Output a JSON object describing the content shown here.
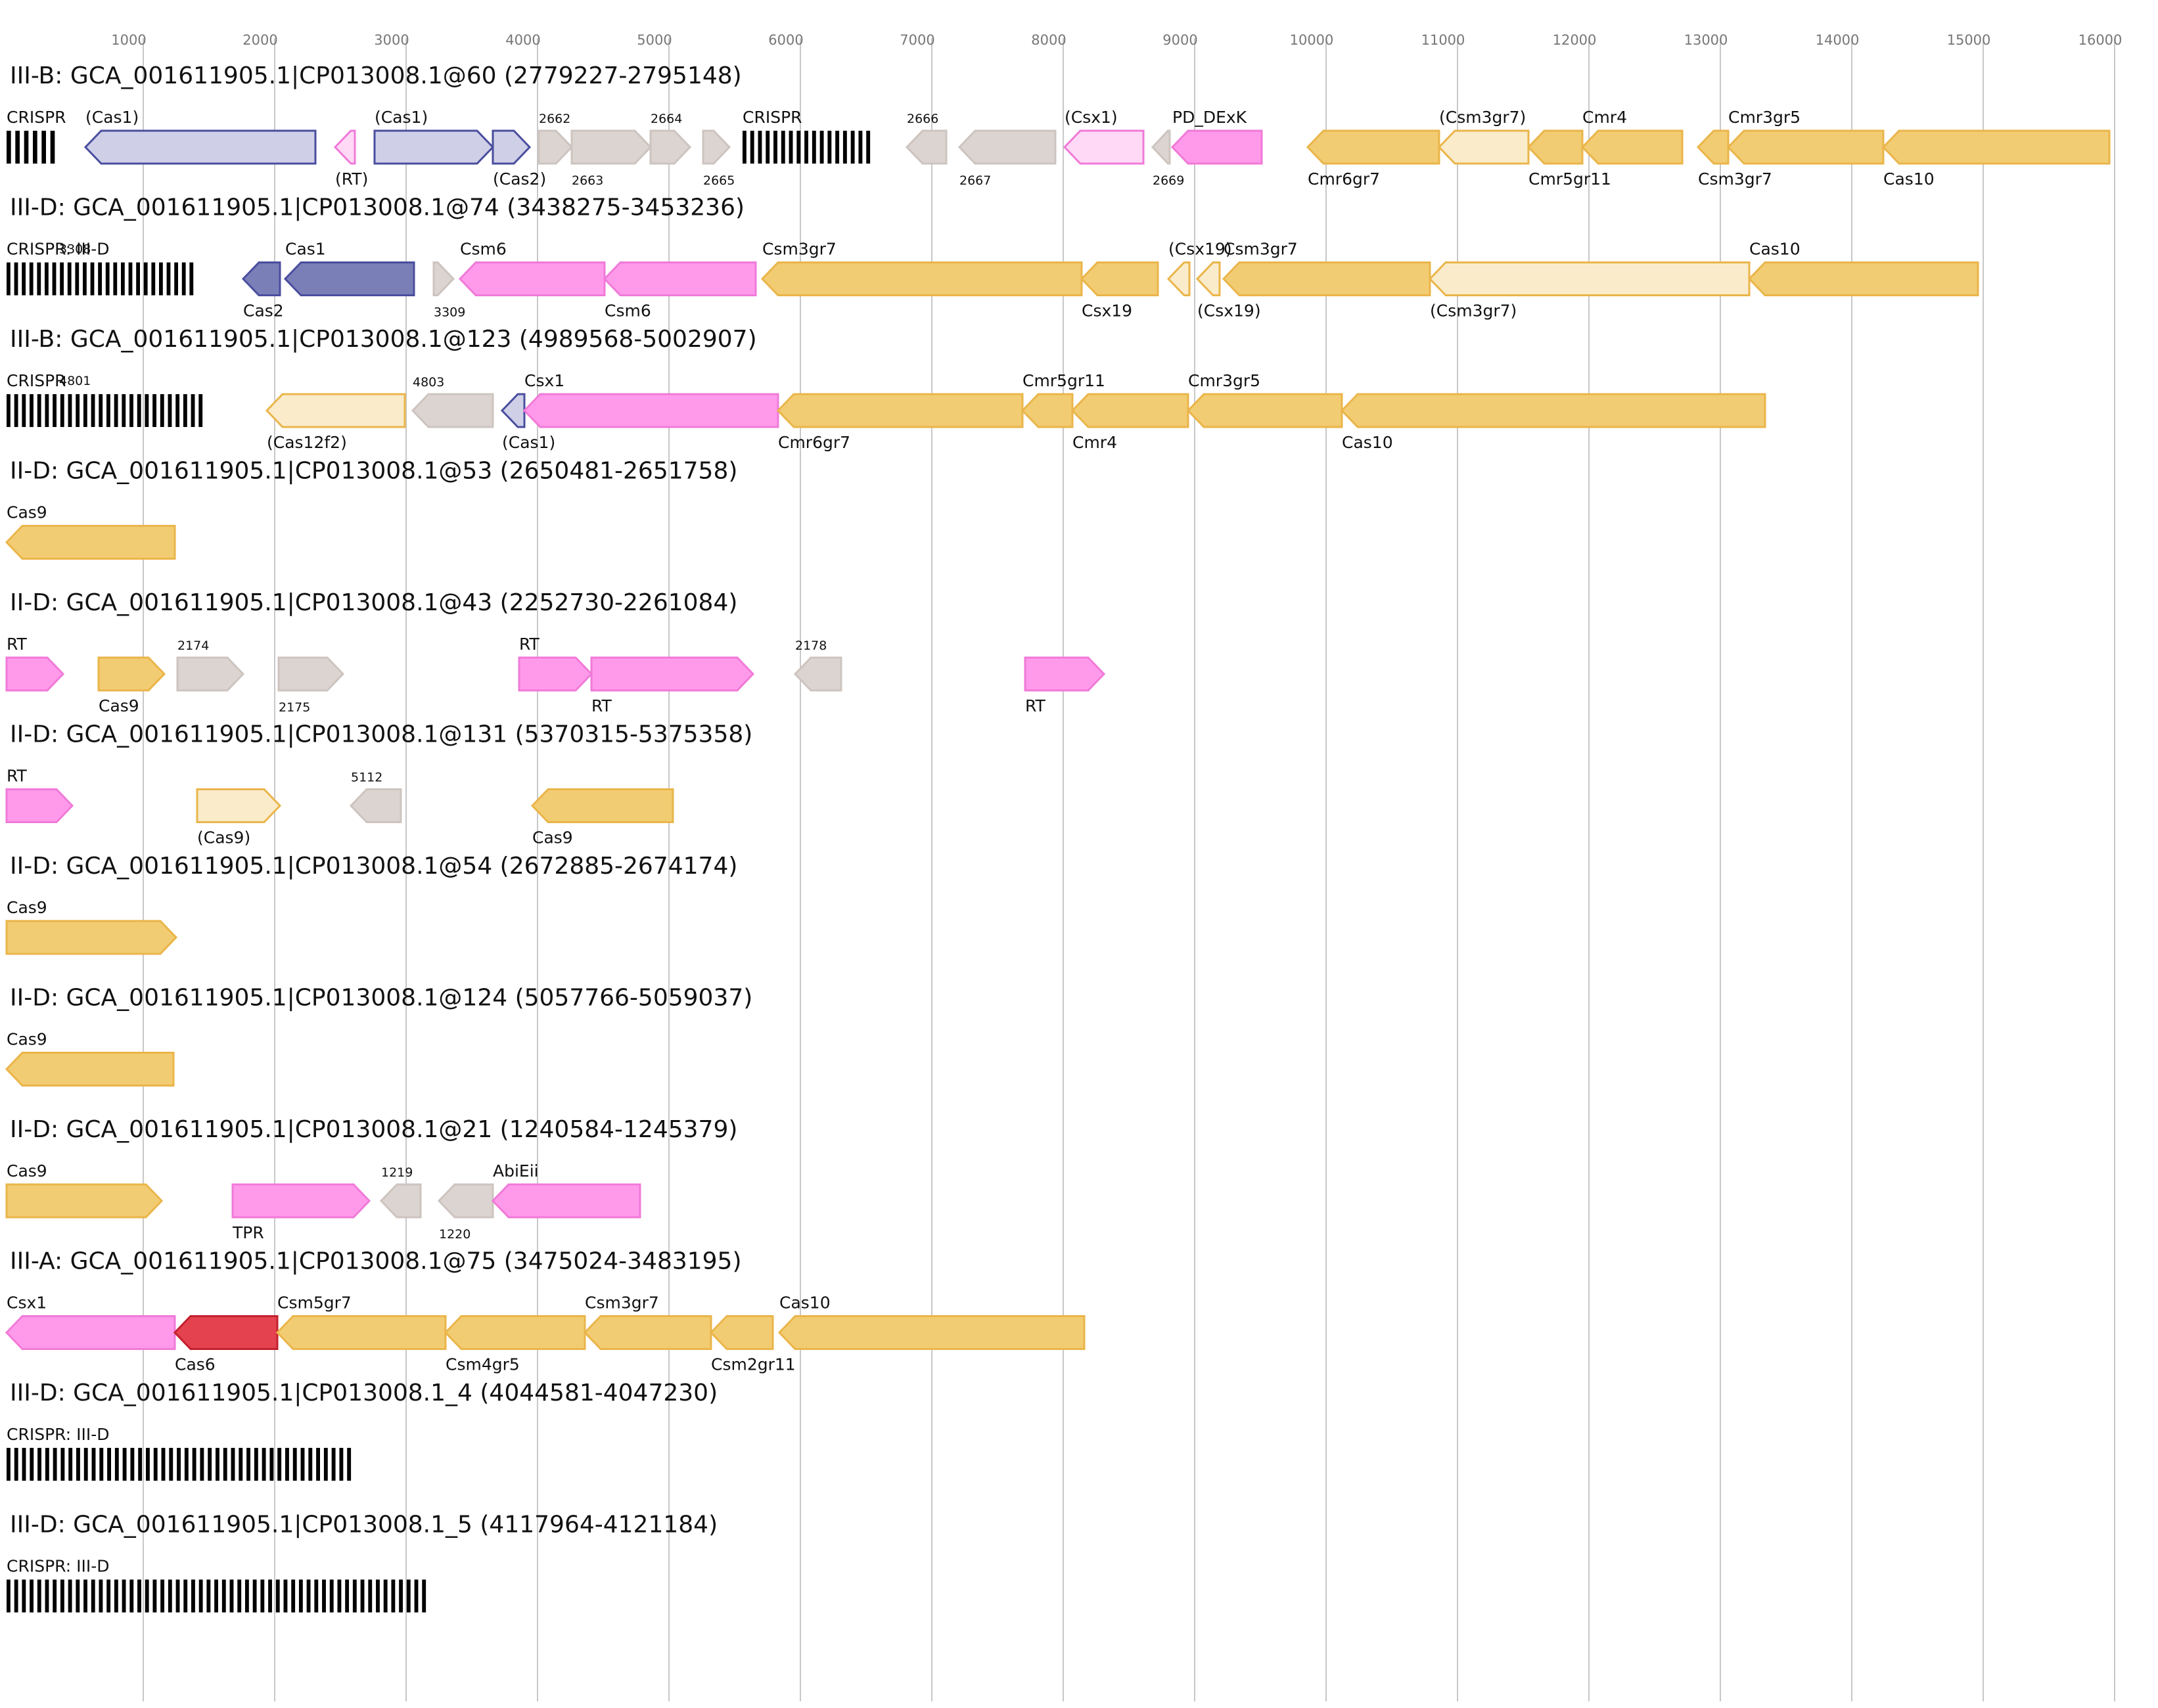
{
  "colors": {
    "grid": "#c8c8c8",
    "blue": {
      "fill": "#7b7fb8",
      "stroke": "#4a4e9e"
    },
    "blue_light": {
      "fill": "#cfd0e8",
      "stroke": "#4a4e9e"
    },
    "pink": {
      "fill": "#ff9aea",
      "stroke": "#f07ad8"
    },
    "pink_light": {
      "fill": "#ffd9f6",
      "stroke": "#f07ad8"
    },
    "gold": {
      "fill": "#f2cc72",
      "stroke": "#eab54a"
    },
    "gold_light": {
      "fill": "#faebcb",
      "stroke": "#eab54a"
    },
    "grey": {
      "fill": "#dcd4d0",
      "stroke": "#cdc4bf"
    },
    "red": {
      "fill": "#e5424f",
      "stroke": "#c3202e"
    },
    "crispr": "#000000"
  },
  "axis": {
    "min": 0,
    "max": 16000,
    "ticks": [
      1000,
      2000,
      3000,
      4000,
      5000,
      6000,
      7000,
      8000,
      9000,
      10000,
      11000,
      12000,
      13000,
      14000,
      15000,
      16000
    ]
  },
  "tracks": [
    {
      "title": "III-B: GCA_001611905.1|CP013008.1@60 (2779227-2795148)",
      "features": [
        {
          "type": "crispr",
          "start": 0,
          "end": 400,
          "label": "CRISPR",
          "bars": 6
        },
        {
          "start": 600,
          "end": 2350,
          "strand": "-",
          "color": "blue_light",
          "label": "(Cas1)",
          "lp": "above"
        },
        {
          "start": 2500,
          "end": 2650,
          "strand": "-",
          "color": "pink_light",
          "label": "(RT)",
          "lp": "below"
        },
        {
          "start": 2800,
          "end": 3700,
          "strand": "+",
          "color": "blue_light",
          "label": "(Cas1)",
          "lp": "above"
        },
        {
          "start": 3700,
          "end": 3980,
          "strand": "+",
          "color": "blue_light",
          "label": "(Cas2)",
          "lp": "below"
        },
        {
          "start": 4050,
          "end": 4300,
          "strand": "+",
          "color": "grey",
          "label": "2662",
          "lp": "above",
          "small": true
        },
        {
          "start": 4300,
          "end": 4900,
          "strand": "+",
          "color": "grey",
          "label": "2663",
          "lp": "below",
          "small": true
        },
        {
          "start": 4900,
          "end": 5200,
          "strand": "+",
          "color": "grey",
          "label": "2664",
          "lp": "above",
          "small": true
        },
        {
          "start": 5300,
          "end": 5500,
          "strand": "+",
          "color": "grey",
          "label": "2665",
          "lp": "below",
          "small": true
        },
        {
          "type": "crispr",
          "start": 5600,
          "end": 6600,
          "label": "CRISPR",
          "bars": 17
        },
        {
          "start": 6850,
          "end": 7150,
          "strand": "-",
          "color": "grey",
          "label": "2666",
          "lp": "above",
          "small": true
        },
        {
          "start": 7250,
          "end": 7980,
          "strand": "-",
          "color": "grey",
          "label": "2667",
          "lp": "below",
          "small": true
        },
        {
          "start": 8050,
          "end": 8650,
          "strand": "-",
          "color": "pink_light",
          "label": "(Csx1)",
          "lp": "above"
        },
        {
          "start": 8720,
          "end": 8850,
          "strand": "-",
          "color": "grey",
          "label": "2669",
          "lp": "below",
          "small": true
        },
        {
          "start": 8870,
          "end": 9550,
          "strand": "-",
          "color": "pink",
          "label": "PD_DExK",
          "lp": "above"
        },
        {
          "start": 9900,
          "end": 10900,
          "strand": "-",
          "color": "gold",
          "label": "Cmr6gr7",
          "lp": "below"
        },
        {
          "start": 10900,
          "end": 11580,
          "strand": "-",
          "color": "gold_light",
          "label": "(Csm3gr7)",
          "lp": "above"
        },
        {
          "start": 11580,
          "end": 11990,
          "strand": "-",
          "color": "gold",
          "label": "Cmr5gr11",
          "lp": "below"
        },
        {
          "start": 11990,
          "end": 12750,
          "strand": "-",
          "color": "gold",
          "label": "Cmr4",
          "lp": "above"
        },
        {
          "start": 12870,
          "end": 13100,
          "strand": "-",
          "color": "gold",
          "label": "Csm3gr7",
          "lp": "below"
        },
        {
          "start": 13100,
          "end": 14280,
          "strand": "-",
          "color": "gold",
          "label": "Cmr3gr5",
          "lp": "above"
        },
        {
          "start": 14280,
          "end": 16000,
          "strand": "-",
          "color": "gold",
          "label": "Cas10",
          "lp": "below"
        }
      ]
    },
    {
      "title": "III-D: GCA_001611905.1|CP013008.1@74 (3438275-3453236)",
      "features": [
        {
          "type": "crispr",
          "start": 0,
          "end": 1450,
          "label": "CRISPR: III-D",
          "bars": 25,
          "num": "3308"
        },
        {
          "start": 1800,
          "end": 2080,
          "strand": "-",
          "color": "blue",
          "label": "Cas2",
          "lp": "below"
        },
        {
          "start": 2120,
          "end": 3100,
          "strand": "-",
          "color": "blue",
          "label": "Cas1",
          "lp": "above"
        },
        {
          "start": 3250,
          "end": 3400,
          "strand": "+",
          "color": "grey",
          "label": "3309",
          "lp": "below",
          "small": true
        },
        {
          "start": 3450,
          "end": 4550,
          "strand": "-",
          "color": "pink",
          "label": "Csm6",
          "lp": "above"
        },
        {
          "start": 4550,
          "end": 5700,
          "strand": "-",
          "color": "pink",
          "label": "Csm6",
          "lp": "below"
        },
        {
          "start": 5750,
          "end": 8180,
          "strand": "-",
          "color": "gold",
          "label": "Csm3gr7",
          "lp": "above"
        },
        {
          "start": 8180,
          "end": 8760,
          "strand": "-",
          "color": "gold",
          "label": "Csx19",
          "lp": "below"
        },
        {
          "start": 8840,
          "end": 9000,
          "strand": "-",
          "color": "gold_light",
          "label": "(Csx19)",
          "lp": "above"
        },
        {
          "start": 9060,
          "end": 9230,
          "strand": "-",
          "color": "gold_light",
          "label": "(Csx19)",
          "lp": "below"
        },
        {
          "start": 9260,
          "end": 10830,
          "strand": "-",
          "color": "gold",
          "label": "Csm3gr7",
          "lp": "above"
        },
        {
          "start": 10830,
          "end": 13260,
          "strand": "-",
          "color": "gold_light",
          "label": "(Csm3gr7)",
          "lp": "below"
        },
        {
          "start": 13260,
          "end": 15000,
          "strand": "-",
          "color": "gold",
          "label": "Cas10",
          "lp": "above"
        }
      ]
    },
    {
      "title": "III-B: GCA_001611905.1|CP013008.1@123 (4989568-5002907)",
      "features": [
        {
          "type": "crispr",
          "start": 0,
          "end": 1520,
          "label": "CRISPR",
          "bars": 26,
          "num": "4801"
        },
        {
          "start": 1980,
          "end": 3030,
          "strand": "-",
          "color": "gold_light",
          "label": "(Cas12f2)",
          "lp": "below"
        },
        {
          "start": 3090,
          "end": 3700,
          "strand": "-",
          "color": "grey",
          "label": "4803",
          "lp": "above",
          "small": true
        },
        {
          "start": 3770,
          "end": 3940,
          "strand": "-",
          "color": "blue_light",
          "label": "(Cas1)",
          "lp": "below"
        },
        {
          "start": 3940,
          "end": 5870,
          "strand": "-",
          "color": "pink",
          "label": "Csx1",
          "lp": "above"
        },
        {
          "start": 5870,
          "end": 7730,
          "strand": "-",
          "color": "gold",
          "label": "Cmr6gr7",
          "lp": "below"
        },
        {
          "start": 7730,
          "end": 8110,
          "strand": "-",
          "color": "gold",
          "label": "Cmr5gr11",
          "lp": "above"
        },
        {
          "start": 8110,
          "end": 8990,
          "strand": "-",
          "color": "gold",
          "label": "Cmr4",
          "lp": "below"
        },
        {
          "start": 8990,
          "end": 10160,
          "strand": "-",
          "color": "gold",
          "label": "Cmr3gr5",
          "lp": "above"
        },
        {
          "start": 10160,
          "end": 13380,
          "strand": "-",
          "color": "gold",
          "label": "Cas10",
          "lp": "below"
        }
      ]
    },
    {
      "title": "II-D: GCA_001611905.1|CP013008.1@53 (2650481-2651758)",
      "features": [
        {
          "start": 0,
          "end": 1280,
          "strand": "-",
          "color": "gold",
          "label": "Cas9",
          "lp": "above"
        }
      ]
    },
    {
      "title": "II-D: GCA_001611905.1|CP013008.1@43 (2252730-2261084)",
      "features": [
        {
          "start": 0,
          "end": 430,
          "strand": "+",
          "color": "pink",
          "label": "RT",
          "lp": "above"
        },
        {
          "start": 700,
          "end": 1200,
          "strand": "+",
          "color": "gold",
          "label": "Cas9",
          "lp": "below"
        },
        {
          "start": 1300,
          "end": 1800,
          "strand": "+",
          "color": "grey",
          "label": "2174",
          "lp": "above",
          "small": true
        },
        {
          "start": 2070,
          "end": 2560,
          "strand": "+",
          "color": "grey",
          "label": "2175",
          "lp": "below",
          "small": true
        },
        {
          "start": 3900,
          "end": 4450,
          "strand": "+",
          "color": "pink",
          "label": "RT",
          "lp": "above"
        },
        {
          "start": 4450,
          "end": 5680,
          "strand": "+",
          "color": "pink",
          "label": "RT",
          "lp": "below"
        },
        {
          "start": 6000,
          "end": 6350,
          "strand": "-",
          "color": "grey",
          "label": "2178",
          "lp": "above",
          "small": true
        },
        {
          "start": 7750,
          "end": 8350,
          "strand": "+",
          "color": "pink",
          "label": "RT",
          "lp": "below"
        }
      ]
    },
    {
      "title": "II-D: GCA_001611905.1|CP013008.1@131 (5370315-5375358)",
      "features": [
        {
          "start": 0,
          "end": 500,
          "strand": "+",
          "color": "pink",
          "label": "RT",
          "lp": "above"
        },
        {
          "start": 1450,
          "end": 2080,
          "strand": "+",
          "color": "gold_light",
          "label": "(Cas9)",
          "lp": "below"
        },
        {
          "start": 2620,
          "end": 3000,
          "strand": "-",
          "color": "grey",
          "label": "5112",
          "lp": "above",
          "small": true
        },
        {
          "start": 4000,
          "end": 5070,
          "strand": "-",
          "color": "gold",
          "label": "Cas9",
          "lp": "below"
        }
      ]
    },
    {
      "title": "II-D: GCA_001611905.1|CP013008.1@54 (2672885-2674174)",
      "features": [
        {
          "start": 0,
          "end": 1290,
          "strand": "+",
          "color": "gold",
          "label": "Cas9",
          "lp": "above"
        }
      ]
    },
    {
      "title": "II-D: GCA_001611905.1|CP013008.1@124 (5057766-5059037)",
      "features": [
        {
          "start": 0,
          "end": 1270,
          "strand": "-",
          "color": "gold",
          "label": "Cas9",
          "lp": "above"
        }
      ]
    },
    {
      "title": "II-D: GCA_001611905.1|CP013008.1@21 (1240584-1245379)",
      "features": [
        {
          "start": 0,
          "end": 1180,
          "strand": "+",
          "color": "gold",
          "label": "Cas9",
          "lp": "above"
        },
        {
          "start": 1720,
          "end": 2760,
          "strand": "+",
          "color": "pink",
          "label": "TPR",
          "lp": "below"
        },
        {
          "start": 2850,
          "end": 3150,
          "strand": "-",
          "color": "grey",
          "label": "1219",
          "lp": "above",
          "small": true
        },
        {
          "start": 3290,
          "end": 3700,
          "strand": "-",
          "color": "grey",
          "label": "1220",
          "lp": "below",
          "small": true
        },
        {
          "start": 3700,
          "end": 4820,
          "strand": "-",
          "color": "pink",
          "label": "AbiEii",
          "lp": "above"
        }
      ]
    },
    {
      "title": "III-A: GCA_001611905.1|CP013008.1@75 (3475024-3483195)",
      "features": [
        {
          "start": 0,
          "end": 1280,
          "strand": "-",
          "color": "pink",
          "label": "Csx1",
          "lp": "above"
        },
        {
          "start": 1280,
          "end": 2060,
          "strand": "-",
          "color": "red",
          "label": "Cas6",
          "lp": "below"
        },
        {
          "start": 2060,
          "end": 3340,
          "strand": "-",
          "color": "gold",
          "label": "Csm5gr7",
          "lp": "above"
        },
        {
          "start": 3340,
          "end": 4400,
          "strand": "-",
          "color": "gold",
          "label": "Csm4gr5",
          "lp": "below"
        },
        {
          "start": 4400,
          "end": 5360,
          "strand": "-",
          "color": "gold",
          "label": "Csm3gr7",
          "lp": "above"
        },
        {
          "start": 5360,
          "end": 5830,
          "strand": "-",
          "color": "gold",
          "label": "Csm2gr11",
          "lp": "below"
        },
        {
          "start": 5880,
          "end": 8200,
          "strand": "-",
          "color": "gold",
          "label": "Cas10",
          "lp": "above"
        }
      ]
    },
    {
      "title": "III-D: GCA_001611905.1|CP013008.1_4 (4044581-4047230)",
      "features": [
        {
          "type": "crispr",
          "start": 0,
          "end": 2650,
          "label": "CRISPR: III-D",
          "bars": 45
        }
      ]
    },
    {
      "title": "III-D: GCA_001611905.1|CP013008.1_5 (4117964-4121184)",
      "features": [
        {
          "type": "crispr",
          "start": 0,
          "end": 3220,
          "label": "CRISPR: III-D",
          "bars": 55
        }
      ]
    }
  ]
}
